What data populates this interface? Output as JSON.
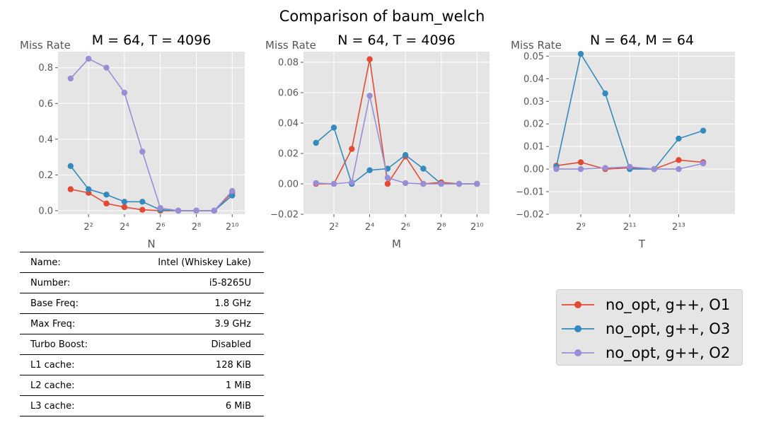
{
  "figure": {
    "suptitle": "Comparison of baum_welch"
  },
  "chart_data": [
    {
      "type": "line",
      "title": "M = 64, T = 4096",
      "xlabel": "N",
      "ylabel": "Miss Rate",
      "x_scale": "log2",
      "x_ticks": [
        2,
        4,
        6,
        8,
        10
      ],
      "xlim_log2": [
        0.3,
        10.7
      ],
      "ylim": [
        -0.02,
        0.89
      ],
      "y_ticks": [
        0.0,
        0.2,
        0.4,
        0.6,
        0.8
      ],
      "y_tick_labels": [
        "0.0",
        "0.2",
        "0.4",
        "0.6",
        "0.8"
      ],
      "x": [
        2,
        4,
        8,
        16,
        32,
        64,
        128,
        256,
        512,
        1024
      ],
      "series": [
        {
          "name": "no_opt, g++, O1",
          "color": "#E24A33",
          "values": [
            0.12,
            0.1,
            0.04,
            0.02,
            0.005,
            0.0,
            0.0,
            0.0,
            0.0,
            0.1
          ]
        },
        {
          "name": "no_opt, g++, O3",
          "color": "#348ABD",
          "values": [
            0.25,
            0.12,
            0.09,
            0.05,
            0.05,
            0.005,
            0.0,
            0.0,
            0.0,
            0.085
          ]
        },
        {
          "name": "no_opt, g++, O2",
          "color": "#988ED5",
          "values": [
            0.74,
            0.85,
            0.8,
            0.66,
            0.33,
            0.015,
            0.0,
            0.0,
            0.0,
            0.11
          ]
        }
      ]
    },
    {
      "type": "line",
      "title": "N = 64, T = 4096",
      "xlabel": "M",
      "ylabel": "Miss Rate",
      "x_scale": "log2",
      "x_ticks": [
        2,
        4,
        6,
        8,
        10
      ],
      "xlim_log2": [
        0.3,
        10.7
      ],
      "ylim": [
        -0.02,
        0.087
      ],
      "y_ticks": [
        -0.02,
        0.0,
        0.02,
        0.04,
        0.06,
        0.08
      ],
      "y_tick_labels": [
        "−0.02",
        "0.00",
        "0.02",
        "0.04",
        "0.06",
        "0.08"
      ],
      "x": [
        2,
        4,
        8,
        16,
        32,
        64,
        128,
        256,
        512,
        1024
      ],
      "series": [
        {
          "name": "no_opt, g++, O1",
          "color": "#E24A33",
          "values": [
            0.0,
            0.0,
            0.023,
            0.082,
            0.0,
            0.018,
            0.0,
            0.001,
            0.0,
            0.0
          ]
        },
        {
          "name": "no_opt, g++, O3",
          "color": "#348ABD",
          "values": [
            0.027,
            0.037,
            0.0,
            0.009,
            0.01,
            0.019,
            0.01,
            0.0,
            0.0,
            0.0
          ]
        },
        {
          "name": "no_opt, g++, O2",
          "color": "#988ED5",
          "values": [
            0.0005,
            0.0,
            0.001,
            0.058,
            0.004,
            0.0005,
            0.0,
            0.0,
            0.0,
            0.0
          ]
        }
      ]
    },
    {
      "type": "line",
      "title": "N = 64, M = 64",
      "xlabel": "T",
      "ylabel": "Miss Rate",
      "x_scale": "log2",
      "x_ticks": [
        9,
        11,
        13
      ],
      "xlim_log2": [
        7.7,
        15.3
      ],
      "ylim": [
        -0.02,
        0.052
      ],
      "y_ticks": [
        -0.02,
        -0.01,
        0.0,
        0.01,
        0.02,
        0.03,
        0.04,
        0.05
      ],
      "y_tick_labels": [
        "−0.02",
        "−0.01",
        "0.00",
        "0.01",
        "0.02",
        "0.03",
        "0.04",
        "0.05"
      ],
      "x": [
        256,
        512,
        1024,
        2048,
        4096,
        8192,
        16384
      ],
      "series": [
        {
          "name": "no_opt, g++, O1",
          "color": "#E24A33",
          "values": [
            0.0015,
            0.003,
            0.0,
            0.0005,
            0.0,
            0.004,
            0.003
          ]
        },
        {
          "name": "no_opt, g++, O3",
          "color": "#348ABD",
          "values": [
            0.001,
            0.051,
            0.0335,
            0.0,
            0.0,
            0.0135,
            0.017
          ]
        },
        {
          "name": "no_opt, g++, O2",
          "color": "#988ED5",
          "values": [
            0.0,
            0.0,
            0.0005,
            0.001,
            0.0,
            0.0,
            0.0025
          ]
        }
      ]
    }
  ],
  "legend": {
    "placement": "bottom-right",
    "items": [
      {
        "label": "no_opt, g++, O1",
        "color": "#E24A33"
      },
      {
        "label": "no_opt, g++, O3",
        "color": "#348ABD"
      },
      {
        "label": "no_opt, g++, O2",
        "color": "#988ED5"
      }
    ]
  },
  "specs": [
    {
      "label": "Name:",
      "value": "Intel (Whiskey Lake)"
    },
    {
      "label": "Number:",
      "value": "i5-8265U"
    },
    {
      "label": "Base Freq:",
      "value": "1.8 GHz"
    },
    {
      "label": "Max Freq:",
      "value": "3.9 GHz"
    },
    {
      "label": "Turbo Boost:",
      "value": "Disabled"
    },
    {
      "label": "L1 cache:",
      "value": "128 KiB"
    },
    {
      "label": "L2 cache:",
      "value": "1 MiB"
    },
    {
      "label": "L3 cache:",
      "value": "6 MiB"
    }
  ]
}
